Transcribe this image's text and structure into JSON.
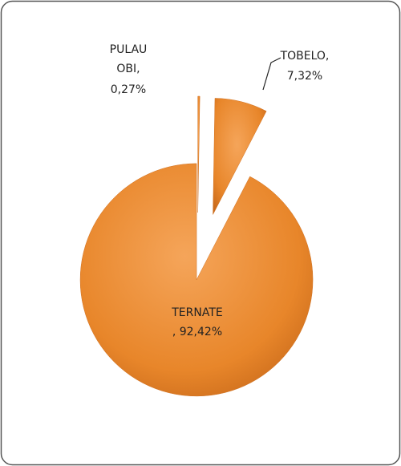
{
  "chart_data": {
    "type": "pie",
    "categories": [
      "PULAU OBI,",
      "TOBELO,",
      "TERNATE"
    ],
    "values": [
      0.27,
      7.32,
      92.42
    ],
    "value_labels": [
      "0,27%",
      "7,32%",
      ", 92,42%"
    ],
    "color": "#e8862a"
  }
}
